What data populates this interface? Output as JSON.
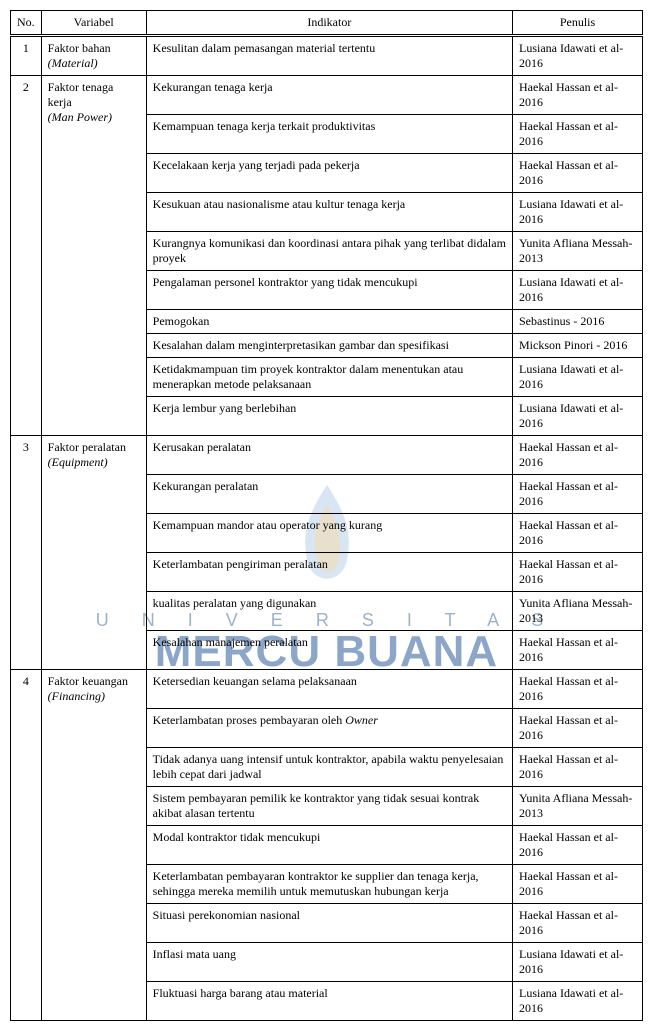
{
  "headers": {
    "no": "No.",
    "variabel": "Variabel",
    "indikator": "Indikator",
    "penulis": "Penulis"
  },
  "watermark": {
    "line1": "U N I V E R S I T A S",
    "line2": "MERCU BUANA"
  },
  "rows": [
    {
      "no": "1",
      "var_main": " Faktor bahan",
      "var_sub": "(Material)",
      "ind": "Kesulitan dalam pemasangan material tertentu",
      "pen": "Lusiana Idawati et al-2016",
      "rowspan_no": 1,
      "rowspan_var": 1
    },
    {
      "no": "2",
      "var_main": "Faktor tenaga kerja",
      "var_sub": "(Man Power)",
      "ind": "Kekurangan tenaga kerja",
      "pen": "Haekal Hassan et al-2016",
      "rowspan_no": 10,
      "rowspan_var": 10
    },
    {
      "ind": "Kemampuan tenaga kerja terkait produktivitas",
      "pen": "Haekal Hassan et al-2016"
    },
    {
      "ind": "Kecelakaan kerja yang terjadi pada pekerja",
      "pen": "Haekal Hassan et al-2016"
    },
    {
      "ind": "Kesukuan atau nasionalisme atau kultur tenaga kerja",
      "pen": "Lusiana Idawati et al-2016"
    },
    {
      "ind": "Kurangnya komunikasi dan koordinasi antara pihak yang terlibat didalam proyek",
      "pen": "Yunita Afliana Messah-2013"
    },
    {
      "ind": "Pengalaman personel kontraktor yang tidak mencukupi",
      "pen": "Lusiana Idawati et al-2016"
    },
    {
      "ind": "Pemogokan",
      "pen": "Sebastinus - 2016"
    },
    {
      "ind": "Kesalahan dalam menginterpretasikan gambar dan spesifikasi",
      "pen": "Mickson Pinori - 2016"
    },
    {
      "ind": "Ketidakmampuan tim proyek kontraktor dalam menentukan atau menerapkan metode pelaksanaan",
      "pen": "Lusiana Idawati et al-2016"
    },
    {
      "ind": "Kerja lembur yang berlebihan",
      "pen": "Lusiana Idawati et al-2016"
    },
    {
      "no": "3",
      "var_main": "Faktor peralatan",
      "var_sub": "(Equipment)",
      "ind": "Kerusakan peralatan",
      "pen": "Haekal Hassan et al-2016",
      "rowspan_no": 6,
      "rowspan_var": 6
    },
    {
      "ind": "Kekurangan peralatan",
      "pen": "Haekal Hassan et al-2016"
    },
    {
      "ind": "Kemampuan mandor atau operator yang kurang",
      "pen": "Haekal Hassan et al-2016"
    },
    {
      "ind": "Keterlambatan pengiriman peralatan",
      "pen": "Haekal Hassan et al-2016"
    },
    {
      "ind": "kualitas peralatan yang digunakan",
      "pen": "Yunita Afliana Messah-2013"
    },
    {
      "ind": "Kesalahan manajemen peralatan",
      "pen": "Haekal Hassan et al-2016"
    },
    {
      "no": "4",
      "var_main": "Faktor keuangan",
      "var_sub": "(Financing)",
      "ind": "Ketersedian keuangan selama pelaksanaan",
      "pen": "Haekal Hassan et al-2016",
      "rowspan_no": 9,
      "rowspan_var": 9
    },
    {
      "ind_html": "Keterlambatan proses pembayaran oleh <span class=\"italic-inline\">Owner</span>",
      "pen": "Haekal Hassan et al-2016"
    },
    {
      "ind": "Tidak adanya uang intensif untuk kontraktor, apabila waktu penyelesaian lebih cepat dari jadwal",
      "pen": "Haekal Hassan et al-2016"
    },
    {
      "ind": "Sistem pembayaran pemilik ke kontraktor yang tidak sesuai kontrak akibat alasan tertentu",
      "pen": "Yunita Afliana Messah-2013"
    },
    {
      "ind": "Modal kontraktor tidak mencukupi",
      "pen": "Haekal Hassan et al-2016"
    },
    {
      "ind": "Keterlambatan pembayaran kontraktor ke supplier dan tenaga kerja, sehingga mereka memilih untuk memutuskan hubungan kerja",
      "pen": "Haekal Hassan et al-2016"
    },
    {
      "ind": "Situasi perekonomian nasional",
      "pen": "Haekal Hassan et al-2016"
    },
    {
      "ind": "Inflasi mata uang",
      "pen": "Lusiana Idawati et al-2016"
    },
    {
      "ind": "Fluktuasi harga barang atau material",
      "pen": "Lusiana Idawati et al-2016"
    }
  ]
}
